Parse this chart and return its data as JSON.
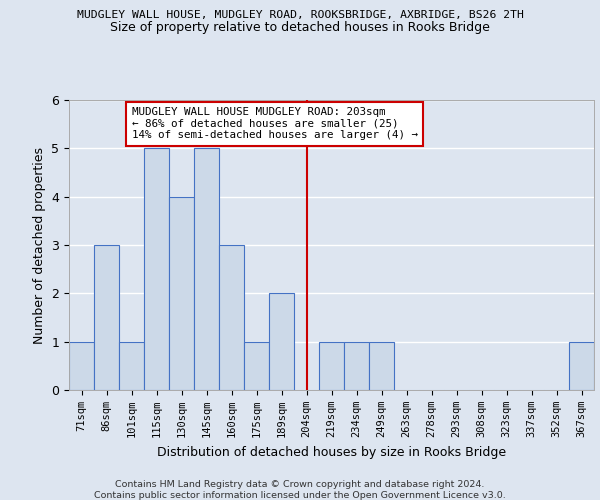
{
  "title1": "MUDGLEY WALL HOUSE, MUDGLEY ROAD, ROOKSBRIDGE, AXBRIDGE, BS26 2TH",
  "title2": "Size of property relative to detached houses in Rooks Bridge",
  "xlabel": "Distribution of detached houses by size in Rooks Bridge",
  "ylabel": "Number of detached properties",
  "bin_labels": [
    "71sqm",
    "86sqm",
    "101sqm",
    "115sqm",
    "130sqm",
    "145sqm",
    "160sqm",
    "175sqm",
    "189sqm",
    "204sqm",
    "219sqm",
    "234sqm",
    "249sqm",
    "263sqm",
    "278sqm",
    "293sqm",
    "308sqm",
    "323sqm",
    "337sqm",
    "352sqm",
    "367sqm"
  ],
  "bar_heights": [
    1,
    3,
    1,
    5,
    4,
    5,
    3,
    1,
    2,
    0,
    1,
    1,
    1,
    0,
    0,
    0,
    0,
    0,
    0,
    0,
    1
  ],
  "bar_color": "#ccd9e8",
  "bar_edge_color": "#4472c4",
  "vline_x_index": 9,
  "vline_color": "#cc0000",
  "annotation_text": "MUDGLEY WALL HOUSE MUDGLEY ROAD: 203sqm\n← 86% of detached houses are smaller (25)\n14% of semi-detached houses are larger (4) →",
  "annotation_box_color": "#ffffff",
  "annotation_box_edge": "#cc0000",
  "footer1": "Contains HM Land Registry data © Crown copyright and database right 2024.",
  "footer2": "Contains public sector information licensed under the Open Government Licence v3.0.",
  "ylim": [
    0,
    6
  ],
  "yticks": [
    0,
    1,
    2,
    3,
    4,
    5,
    6
  ],
  "background_color": "#dde5f0",
  "plot_bg_color": "#dde5f0",
  "grid_color": "#ffffff"
}
